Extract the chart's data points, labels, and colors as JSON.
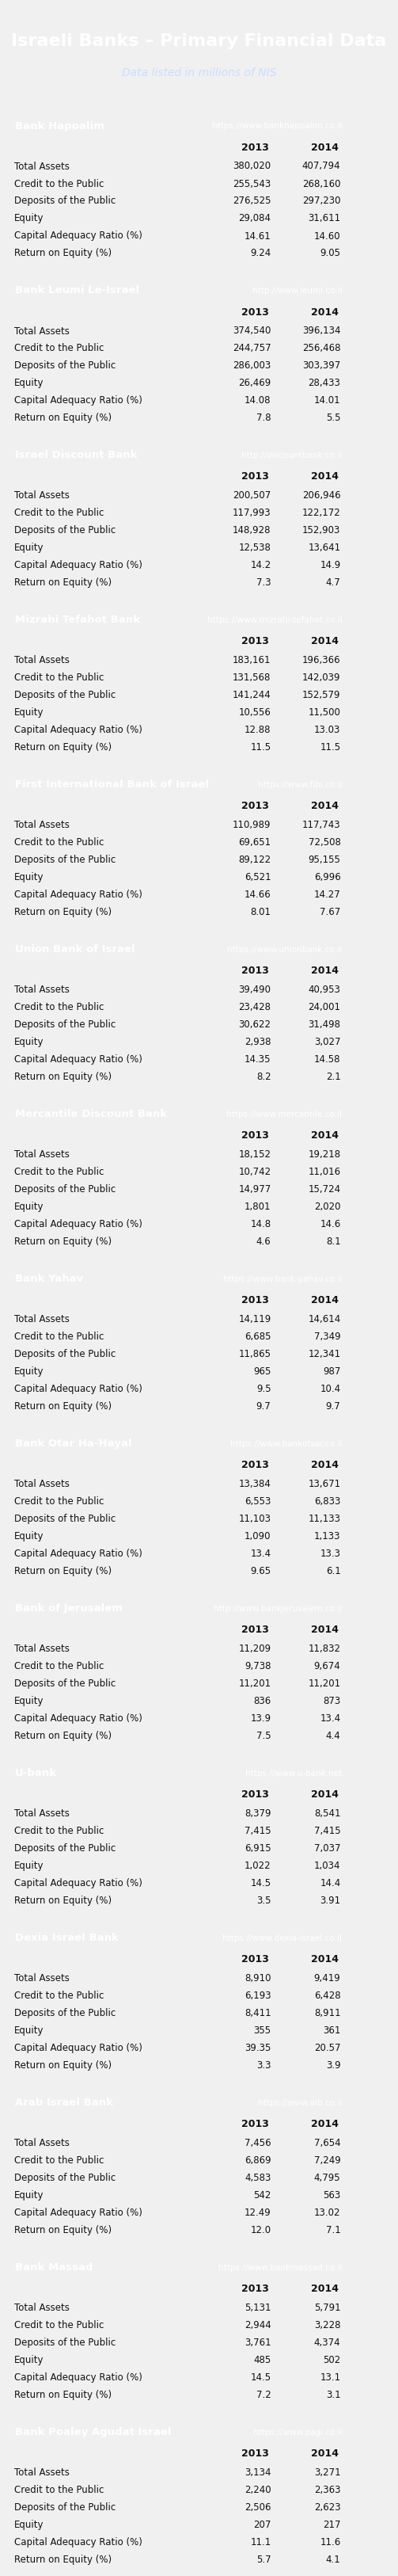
{
  "title": "Israeli Banks – Primary Financial Data",
  "subtitle": "Data listed in millions of NIS",
  "header_bg": "#1a3a6b",
  "header_fg": "#ffffff",
  "row_bg_odd": "#e8e8e8",
  "row_bg_even": "#ffffff",
  "col_header_fg": "#1a1a1a",
  "banks": [
    {
      "name": "Bank Hapoalim",
      "url": "https://www.bankhapoalim.co.il",
      "rows": [
        [
          "Total Assets",
          "380,020",
          "407,794"
        ],
        [
          "Credit to the Public",
          "255,543",
          "268,160"
        ],
        [
          "Deposits of the Public",
          "276,525",
          "297,230"
        ],
        [
          "Equity",
          "29,084",
          "31,611"
        ],
        [
          "Capital Adequacy Ratio (%)",
          "14.61",
          "14.60"
        ],
        [
          "Return on Equity (%)",
          "9.24",
          "9.05"
        ]
      ]
    },
    {
      "name": "Bank Leumi Le-Israel",
      "url": "http://www.leumi.co.il",
      "rows": [
        [
          "Total Assets",
          "374,540",
          "396,134"
        ],
        [
          "Credit to the Public",
          "244,757",
          "256,468"
        ],
        [
          "Deposits of the Public",
          "286,003",
          "303,397"
        ],
        [
          "Equity",
          "26,469",
          "28,433"
        ],
        [
          "Capital Adequacy Ratio (%)",
          "14.08",
          "14.01"
        ],
        [
          "Return on Equity (%)",
          "7.8",
          "5.5"
        ]
      ]
    },
    {
      "name": "Israel Discount Bank",
      "url": "http://discountbank.co.il",
      "rows": [
        [
          "Total Assets",
          "200,507",
          "206,946"
        ],
        [
          "Credit to the Public",
          "117,993",
          "122,172"
        ],
        [
          "Deposits of the Public",
          "148,928",
          "152,903"
        ],
        [
          "Equity",
          "12,538",
          "13,641"
        ],
        [
          "Capital Adequacy Ratio (%)",
          "14.2",
          "14.9"
        ],
        [
          "Return on Equity (%)",
          "7.3",
          "4.7"
        ]
      ]
    },
    {
      "name": "Mizrahi Tefahot Bank",
      "url": "https://www.mizrahi-tefahot.co.il",
      "rows": [
        [
          "Total Assets",
          "183,161",
          "196,366"
        ],
        [
          "Credit to the Public",
          "131,568",
          "142,039"
        ],
        [
          "Deposits of the Public",
          "141,244",
          "152,579"
        ],
        [
          "Equity",
          "10,556",
          "11,500"
        ],
        [
          "Capital Adequacy Ratio (%)",
          "12.88",
          "13.03"
        ],
        [
          "Return on Equity (%)",
          "11.5",
          "11.5"
        ]
      ]
    },
    {
      "name": "First International Bank of Israel",
      "url": "https://www.fibi.co.il",
      "rows": [
        [
          "Total Assets",
          "110,989",
          "117,743"
        ],
        [
          "Credit to the Public",
          "69,651",
          "72,508"
        ],
        [
          "Deposits of the Public",
          "89,122",
          "95,155"
        ],
        [
          "Equity",
          "6,521",
          "6,996"
        ],
        [
          "Capital Adequacy Ratio (%)",
          "14.66",
          "14.27"
        ],
        [
          "Return on Equity (%)",
          "8.01",
          "7.67"
        ]
      ]
    },
    {
      "name": "Union Bank of Israel",
      "url": "https://www.unionbank.co.il",
      "rows": [
        [
          "Total Assets",
          "39,490",
          "40,953"
        ],
        [
          "Credit to the Public",
          "23,428",
          "24,001"
        ],
        [
          "Deposits of the Public",
          "30,622",
          "31,498"
        ],
        [
          "Equity",
          "2,938",
          "3,027"
        ],
        [
          "Capital Adequacy Ratio (%)",
          "14.35",
          "14.58"
        ],
        [
          "Return on Equity (%)",
          "8.2",
          "2.1"
        ]
      ]
    },
    {
      "name": "Mercantile Discount Bank",
      "url": "https://www.mercantile.co.il",
      "rows": [
        [
          "Total Assets",
          "18,152",
          "19,218"
        ],
        [
          "Credit to the Public",
          "10,742",
          "11,016"
        ],
        [
          "Deposits of the Public",
          "14,977",
          "15,724"
        ],
        [
          "Equity",
          "1,801",
          "2,020"
        ],
        [
          "Capital Adequacy Ratio (%)",
          "14.8",
          "14.6"
        ],
        [
          "Return on Equity (%)",
          "4.6",
          "8.1"
        ]
      ]
    },
    {
      "name": "Bank Yahav",
      "url": "https://www.bank-yahav.co.il",
      "rows": [
        [
          "Total Assets",
          "14,119",
          "14,614"
        ],
        [
          "Credit to the Public",
          "6,685",
          "7,349"
        ],
        [
          "Deposits of the Public",
          "11,865",
          "12,341"
        ],
        [
          "Equity",
          "965",
          "987"
        ],
        [
          "Capital Adequacy Ratio (%)",
          "9.5",
          "10.4"
        ],
        [
          "Return on Equity (%)",
          "9.7",
          "9.7"
        ]
      ]
    },
    {
      "name": "Bank Otar Ha-Hayal",
      "url": "https://www.bankotsar.co.il",
      "rows": [
        [
          "Total Assets",
          "13,384",
          "13,671"
        ],
        [
          "Credit to the Public",
          "6,553",
          "6,833"
        ],
        [
          "Deposits of the Public",
          "11,103",
          "11,133"
        ],
        [
          "Equity",
          "1,090",
          "1,133"
        ],
        [
          "Capital Adequacy Ratio (%)",
          "13.4",
          "13.3"
        ],
        [
          "Return on Equity (%)",
          "9.65",
          "6.1"
        ]
      ]
    },
    {
      "name": "Bank of Jerusalem",
      "url": "http://www.bankjerusalem.co.il",
      "rows": [
        [
          "Total Assets",
          "11,209",
          "11,832"
        ],
        [
          "Credit to the Public",
          "9,738",
          "9,674"
        ],
        [
          "Deposits of the Public",
          "11,201",
          "11,201"
        ],
        [
          "Equity",
          "836",
          "873"
        ],
        [
          "Capital Adequacy Ratio (%)",
          "13.9",
          "13.4"
        ],
        [
          "Return on Equity (%)",
          "7.5",
          "4.4"
        ]
      ]
    },
    {
      "name": "U-bank",
      "url": "https://www.u-bank.net",
      "rows": [
        [
          "Total Assets",
          "8,379",
          "8,541"
        ],
        [
          "Credit to the Public",
          "7,415",
          "7,415"
        ],
        [
          "Deposits of the Public",
          "6,915",
          "7,037"
        ],
        [
          "Equity",
          "1,022",
          "1,034"
        ],
        [
          "Capital Adequacy Ratio (%)",
          "14.5",
          "14.4"
        ],
        [
          "Return on Equity (%)",
          "3.5",
          "3.91"
        ]
      ]
    },
    {
      "name": "Dexia Israel Bank",
      "url": "https://www.dexia-israel.co.il",
      "rows": [
        [
          "Total Assets",
          "8,910",
          "9,419"
        ],
        [
          "Credit to the Public",
          "6,193",
          "6,428"
        ],
        [
          "Deposits of the Public",
          "8,411",
          "8,911"
        ],
        [
          "Equity",
          "355",
          "361"
        ],
        [
          "Capital Adequacy Ratio (%)",
          "39.35",
          "20.57"
        ],
        [
          "Return on Equity (%)",
          "3.3",
          "3.9"
        ]
      ]
    },
    {
      "name": "Arab Israel Bank",
      "url": "https://www.aib.co.il",
      "rows": [
        [
          "Total Assets",
          "7,456",
          "7,654"
        ],
        [
          "Credit to the Public",
          "6,869",
          "7,249"
        ],
        [
          "Deposits of the Public",
          "4,583",
          "4,795"
        ],
        [
          "Equity",
          "542",
          "563"
        ],
        [
          "Capital Adequacy Ratio (%)",
          "12.49",
          "13.02"
        ],
        [
          "Return on Equity (%)",
          "12.0",
          "7.1"
        ]
      ]
    },
    {
      "name": "Bank Massad",
      "url": "https://www.bankmassad.co.il",
      "rows": [
        [
          "Total Assets",
          "5,131",
          "5,791"
        ],
        [
          "Credit to the Public",
          "2,944",
          "3,228"
        ],
        [
          "Deposits of the Public",
          "3,761",
          "4,374"
        ],
        [
          "Equity",
          "485",
          "502"
        ],
        [
          "Capital Adequacy Ratio (%)",
          "14.5",
          "13.1"
        ],
        [
          "Return on Equity (%)",
          "7.2",
          "3.1"
        ]
      ]
    },
    {
      "name": "Bank Poaley Agudat Israel",
      "url": "https://www.pagi.co.il",
      "rows": [
        [
          "Total Assets",
          "3,134",
          "3,271"
        ],
        [
          "Credit to the Public",
          "2,240",
          "2,363"
        ],
        [
          "Deposits of the Public",
          "2,506",
          "2,623"
        ],
        [
          "Equity",
          "207",
          "217"
        ],
        [
          "Capital Adequacy Ratio (%)",
          "11.1",
          "11.6"
        ],
        [
          "Return on Equity (%)",
          "5.7",
          "4.1"
        ]
      ]
    }
  ]
}
